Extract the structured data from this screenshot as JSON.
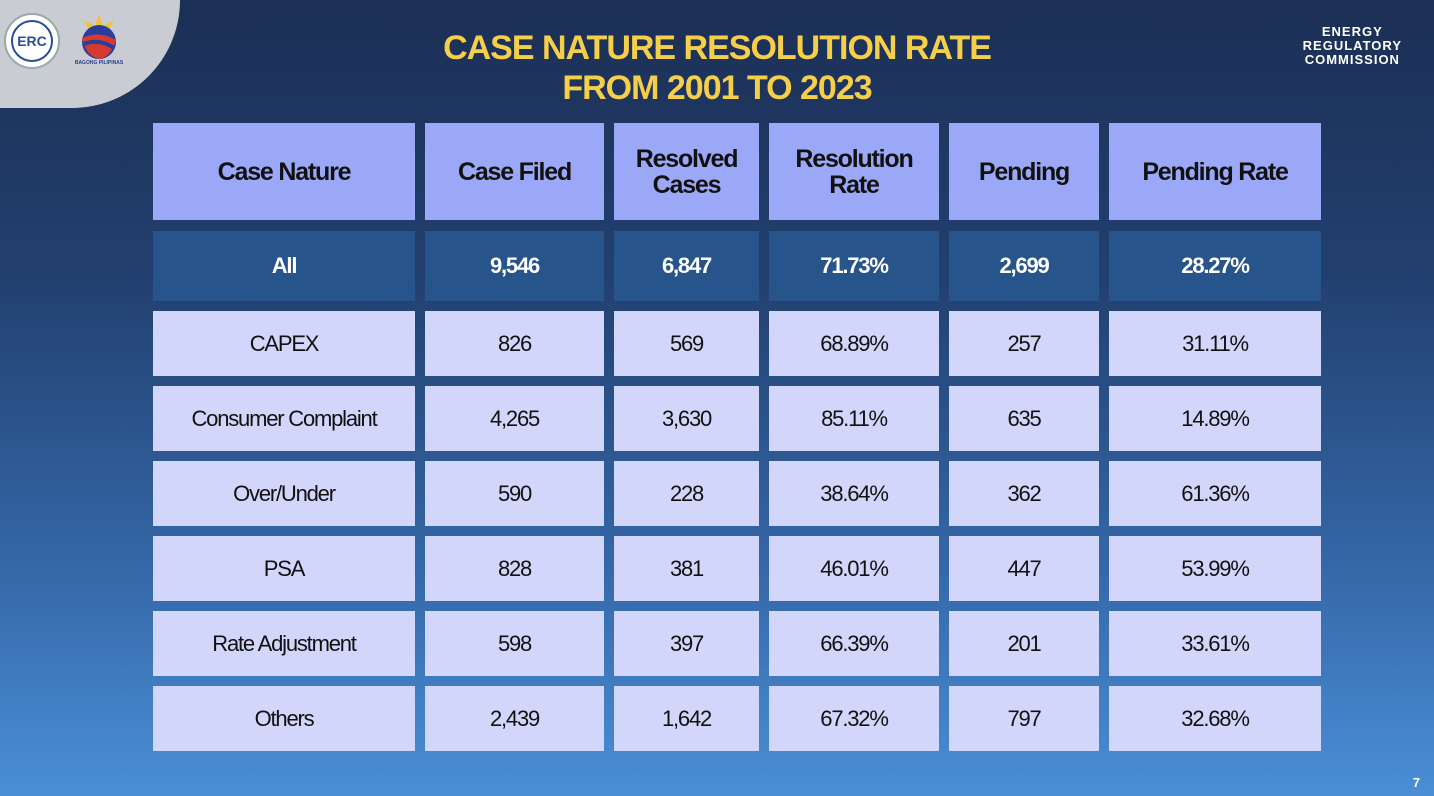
{
  "logos": {
    "erc_seal": "ERC",
    "bagong_pilipinas": "BAGONG PILIPINAS"
  },
  "title": {
    "line1": "CASE NATURE RESOLUTION RATE",
    "line2": "FROM 2001 TO 2023"
  },
  "org": {
    "line1": "ENERGY",
    "line2": "REGULATORY",
    "line3": "COMMISSION"
  },
  "page_number": "7",
  "colors": {
    "title": "#f6cf4a",
    "header": "#9ba8f7",
    "total_row": "#27548a",
    "row": "#d2d6fb"
  },
  "table": {
    "headers": [
      "Case Nature",
      "Case Filed",
      "Resolved Cases",
      "Resolution Rate",
      "Pending",
      "Pending Rate"
    ],
    "total": [
      "All",
      "9,546",
      "6,847",
      "71.73%",
      "2,699",
      "28.27%"
    ],
    "rows": [
      [
        "CAPEX",
        "826",
        "569",
        "68.89%",
        "257",
        "31.11%"
      ],
      [
        "Consumer Complaint",
        "4,265",
        "3,630",
        "85.11%",
        "635",
        "14.89%"
      ],
      [
        "Over/Under",
        "590",
        "228",
        "38.64%",
        "362",
        "61.36%"
      ],
      [
        "PSA",
        "828",
        "381",
        "46.01%",
        "447",
        "53.99%"
      ],
      [
        "Rate Adjustment",
        "598",
        "397",
        "66.39%",
        "201",
        "33.61%"
      ],
      [
        "Others",
        "2,439",
        "1,642",
        "67.32%",
        "797",
        "32.68%"
      ]
    ]
  }
}
